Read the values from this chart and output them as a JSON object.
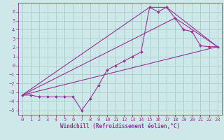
{
  "bg_color": "#cce8e8",
  "grid_color": "#aacccc",
  "line_color": "#993399",
  "xlim": [
    -0.5,
    23.5
  ],
  "ylim": [
    -5.5,
    7.0
  ],
  "xticks": [
    0,
    1,
    2,
    3,
    4,
    5,
    6,
    7,
    8,
    9,
    10,
    11,
    12,
    13,
    14,
    15,
    16,
    17,
    18,
    19,
    20,
    21,
    22,
    23
  ],
  "yticks": [
    -5,
    -4,
    -3,
    -2,
    -1,
    0,
    1,
    2,
    3,
    4,
    5,
    6
  ],
  "xlabel": "Windchill (Refroidissement éolien,°C)",
  "line1_x": [
    0,
    1,
    2,
    3,
    4,
    5,
    6,
    7,
    8,
    9,
    10,
    11,
    12,
    13,
    14,
    15,
    16,
    17,
    18,
    19,
    20,
    21,
    22,
    23
  ],
  "line1_y": [
    -3.3,
    -3.3,
    -3.5,
    -3.5,
    -3.5,
    -3.5,
    -3.5,
    -5.0,
    -3.7,
    -2.2,
    -0.5,
    0.0,
    0.5,
    1.0,
    1.5,
    6.5,
    6.0,
    6.5,
    5.3,
    4.0,
    3.8,
    2.2,
    2.1,
    2.1
  ],
  "line2_x": [
    0,
    23
  ],
  "line2_y": [
    -3.3,
    2.1
  ],
  "line3_x": [
    0,
    18,
    23
  ],
  "line3_y": [
    -3.3,
    5.3,
    2.1
  ],
  "line4_x": [
    0,
    15,
    17,
    23
  ],
  "line4_y": [
    -3.3,
    6.5,
    6.5,
    2.1
  ],
  "font_size_xlabel": 5.5,
  "font_size_ticks": 5.0,
  "lw": 0.8,
  "ms": 2.0
}
